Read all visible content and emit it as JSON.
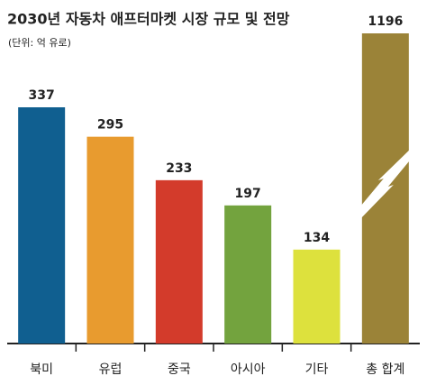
{
  "chart_data": {
    "type": "bar",
    "title": "2030년 자동차 애프터마켓 시장 규모 및 전망",
    "subtitle": "(단위: 억 유로)",
    "categories": [
      "북미",
      "유럽",
      "중국",
      "아시아",
      "기타",
      "총 합계"
    ],
    "values": [
      337,
      295,
      233,
      197,
      134,
      1196
    ],
    "colors": [
      "#105f90",
      "#e89b2f",
      "#d33b2b",
      "#73a33e",
      "#dde13d",
      "#9b8338"
    ]
  }
}
